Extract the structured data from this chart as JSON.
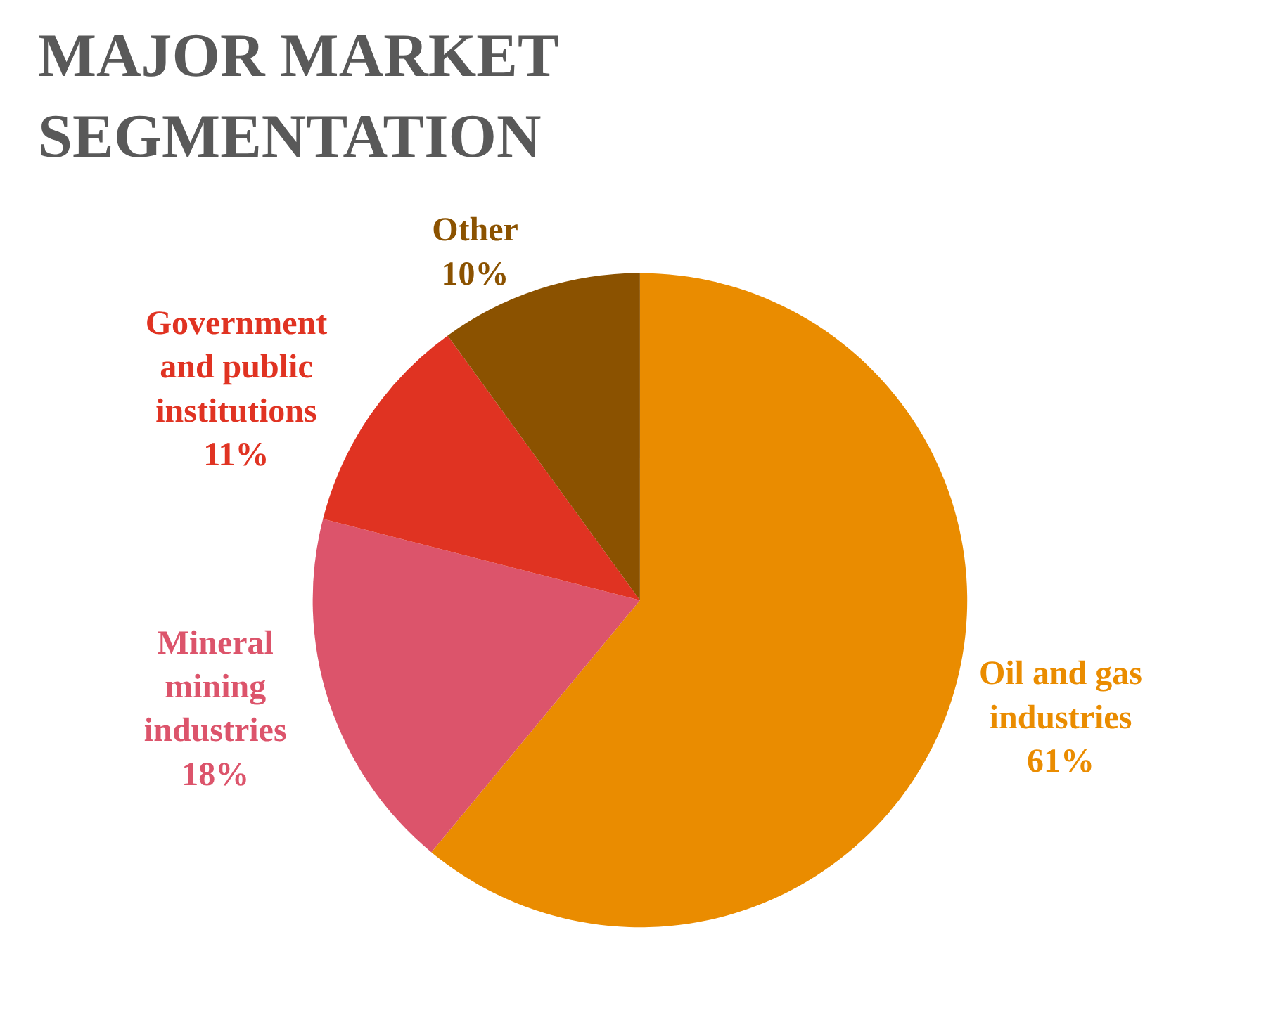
{
  "chart_data": {
    "type": "pie",
    "title": "MAJOR MARKET SEGMENTATION",
    "categories": [
      "Oil and gas industries",
      "Mineral mining industries",
      "Government and public institutions",
      "Other"
    ],
    "values": [
      61,
      18,
      11,
      10
    ],
    "value_labels": [
      "61%",
      "18%",
      "11%",
      "10%"
    ],
    "colors": [
      "#ea8c00",
      "#dc546b",
      "#e03322",
      "#8b5200"
    ],
    "legend": false
  }
}
